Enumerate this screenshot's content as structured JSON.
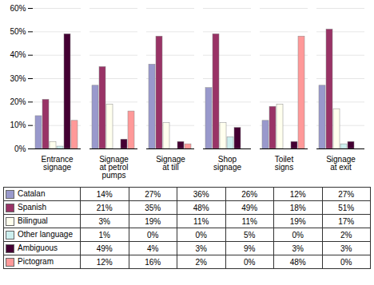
{
  "chart_data": {
    "type": "bar",
    "categories": [
      "Entrance\nsignage",
      "Signage\nat petrol\npumps",
      "Signage\nat till",
      "Shop\nsignage",
      "Toilet\nsigns",
      "Signage\nat exit"
    ],
    "series": [
      {
        "name": "Catalan",
        "color": "#9999CC",
        "values": [
          14,
          27,
          36,
          26,
          12,
          27
        ],
        "value_labels": [
          "14%",
          "27%",
          "36%",
          "26%",
          "12%",
          "27%"
        ]
      },
      {
        "name": "Spanish",
        "color": "#993366",
        "values": [
          21,
          35,
          48,
          49,
          18,
          51
        ],
        "value_labels": [
          "21%",
          "35%",
          "48%",
          "49%",
          "18%",
          "51%"
        ]
      },
      {
        "name": "Bilingual",
        "color": "#FFFFEE",
        "values": [
          3,
          19,
          11,
          11,
          19,
          17
        ],
        "value_labels": [
          "3%",
          "19%",
          "11%",
          "11%",
          "19%",
          "17%"
        ]
      },
      {
        "name": "Other language",
        "color": "#CCEEEE",
        "values": [
          1,
          0,
          0,
          5,
          0,
          2
        ],
        "value_labels": [
          "1%",
          "0%",
          "0%",
          "5%",
          "0%",
          "2%"
        ]
      },
      {
        "name": "Ambiguous",
        "color": "#440033",
        "values": [
          49,
          4,
          3,
          9,
          3,
          3
        ],
        "value_labels": [
          "49%",
          "4%",
          "3%",
          "9%",
          "3%",
          "3%"
        ]
      },
      {
        "name": "Pictogram",
        "color": "#FF9999",
        "values": [
          12,
          16,
          2,
          0,
          48,
          0
        ],
        "value_labels": [
          "12%",
          "16%",
          "2%",
          "0%",
          "48%",
          "0%"
        ]
      }
    ],
    "ylim": [
      0,
      60
    ],
    "yticks": [
      {
        "value": 0,
        "label": "0%"
      },
      {
        "value": 10,
        "label": "10%"
      },
      {
        "value": 20,
        "label": "20%"
      },
      {
        "value": 30,
        "label": "30%"
      },
      {
        "value": 40,
        "label": "40%"
      },
      {
        "value": 50,
        "label": "50%"
      },
      {
        "value": 60,
        "label": "60%"
      }
    ],
    "grid": true
  }
}
